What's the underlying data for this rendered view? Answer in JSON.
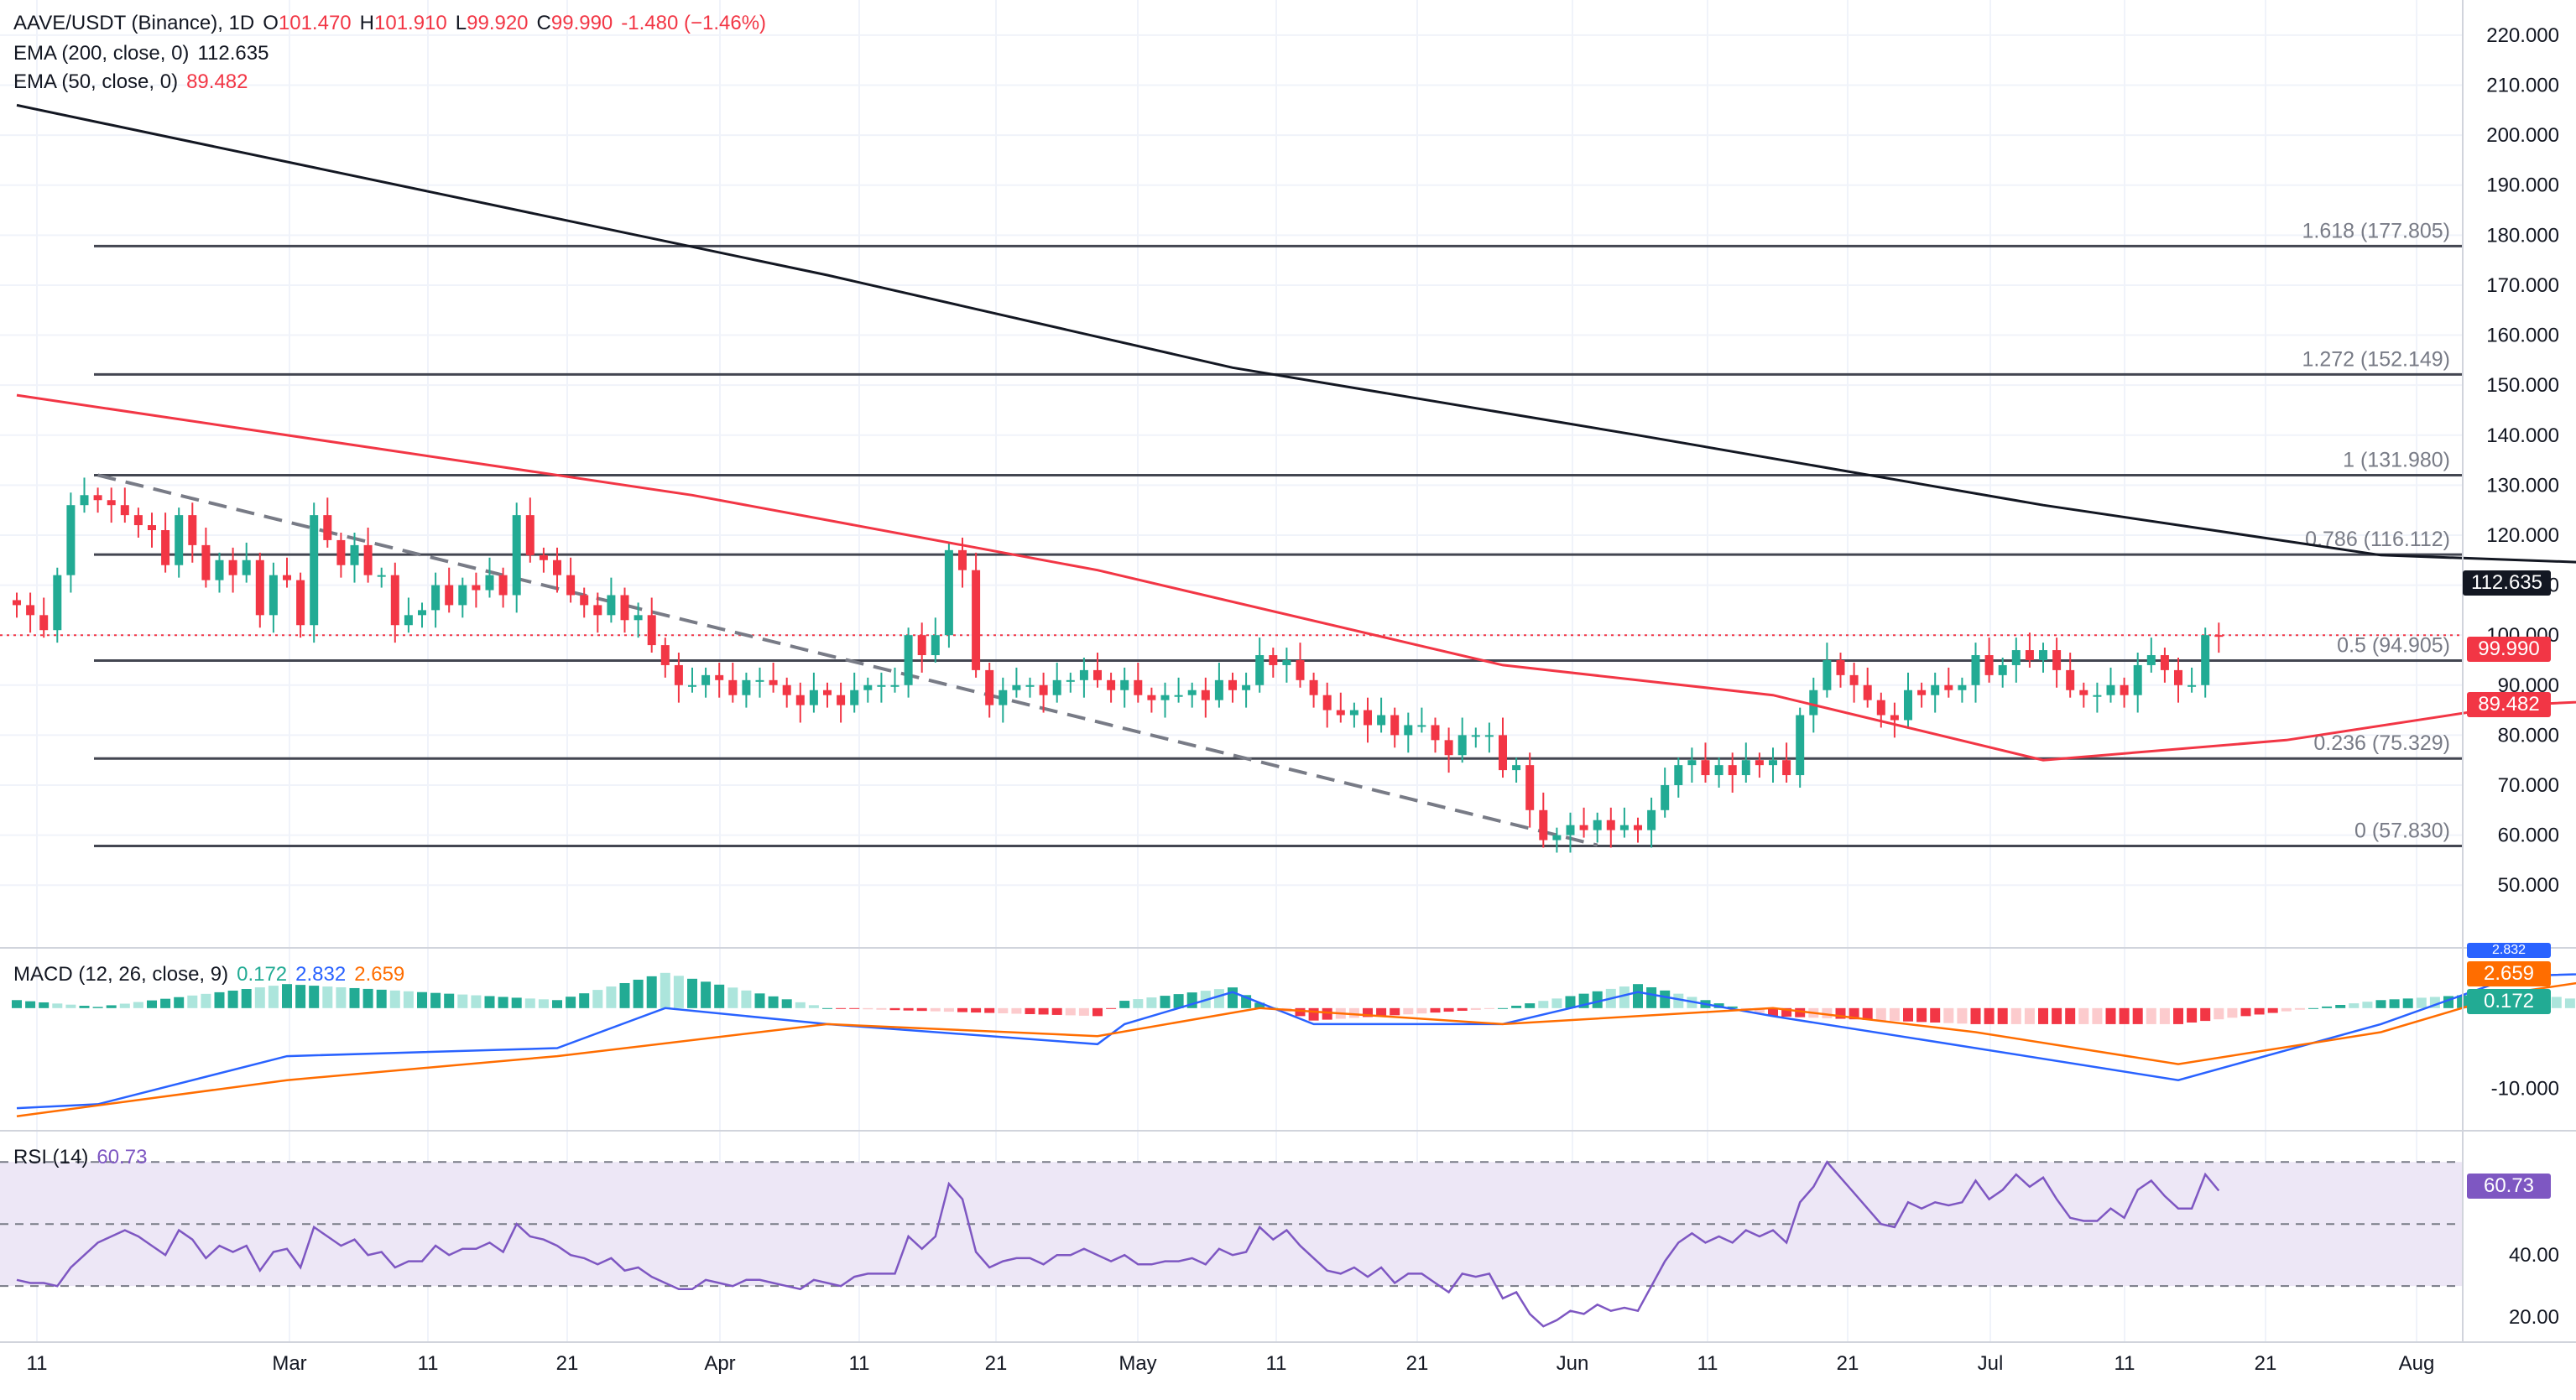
{
  "header": {
    "symbol": "AAVE/USDT (Binance), 1D",
    "o_label": "O",
    "o": "101.470",
    "h_label": "H",
    "h": "101.910",
    "l_label": "L",
    "l": "99.920",
    "c_label": "C",
    "c": "99.990",
    "change": "-1.480 (−1.46%)",
    "ema200_label": "EMA (200, close, 0)",
    "ema200_value": "112.635",
    "ema50_label": "EMA (50, close, 0)",
    "ema50_value": "89.482"
  },
  "macd_legend": {
    "label": "MACD (12, 26, close, 9)",
    "hist": "0.172",
    "macd": "2.832",
    "signal": "2.659"
  },
  "rsi_legend": {
    "label": "RSI (14)",
    "value": "60.73"
  },
  "badges": {
    "ema200": "112.635",
    "last_price": "99.990",
    "ema50": "89.482",
    "macd": "2.832",
    "signal": "2.659",
    "hist": "0.172",
    "rsi": "60.73"
  },
  "colors": {
    "up": "#22ab94",
    "down": "#f23645",
    "ema200": "#131722",
    "ema50": "#f23645",
    "macd": "#2962ff",
    "signal": "#ff6d00",
    "rsi": "#7e57c2",
    "rsi_band": "#ede7f6",
    "fib": "#434651",
    "grid": "#f0f3fa",
    "text": "#131722"
  },
  "chart_data": [
    {
      "type": "candlestick",
      "title": "AAVE/USDT (Binance), 1D",
      "x_ticks": [
        "11",
        "Mar",
        "11",
        "21",
        "Apr",
        "11",
        "21",
        "May",
        "11",
        "21",
        "Jun",
        "11",
        "21",
        "Jul",
        "11",
        "21",
        "Aug"
      ],
      "y_ticks": [
        "220.000",
        "210.000",
        "200.000",
        "190.000",
        "180.000",
        "170.000",
        "160.000",
        "150.000",
        "140.000",
        "130.000",
        "120.000",
        "110.000",
        "100.000",
        "90.000",
        "80.000",
        "70.000",
        "60.000",
        "50.000"
      ],
      "ylim": [
        45,
        222
      ],
      "fib_levels": [
        {
          "label": "1.618 (177.805)",
          "value": 177.805
        },
        {
          "label": "1.272 (152.149)",
          "value": 152.149
        },
        {
          "label": "1 (131.980)",
          "value": 131.98
        },
        {
          "label": "0.786 (116.112)",
          "value": 116.112
        },
        {
          "label": "0.5 (94.905)",
          "value": 94.905
        },
        {
          "label": "0.236 (75.329)",
          "value": 75.329
        },
        {
          "label": "0 (57.830)",
          "value": 57.83
        }
      ],
      "trendline": {
        "from": [
          6,
          132
        ],
        "to": [
          117,
          58
        ]
      },
      "closes": [
        106,
        104,
        101,
        112,
        126,
        128,
        127,
        126,
        124,
        122,
        121,
        114,
        124,
        118,
        111,
        115,
        112,
        115,
        104,
        112,
        111,
        102,
        124,
        119,
        114,
        118,
        112,
        112,
        102,
        104,
        105,
        110,
        106,
        110,
        109,
        112,
        108,
        124,
        116,
        115,
        112,
        108,
        106,
        104,
        108,
        103,
        104,
        98,
        94,
        90,
        90,
        92,
        91,
        88,
        91,
        91,
        90,
        88,
        86,
        89,
        88,
        86,
        89,
        90,
        90,
        90,
        100,
        96,
        100,
        117,
        113,
        93,
        86,
        89,
        90,
        90,
        88,
        91,
        91,
        93,
        91,
        89,
        91,
        88,
        87,
        88,
        88,
        89,
        87,
        91,
        89,
        90,
        96,
        94,
        95,
        91,
        88,
        85,
        84,
        85,
        82,
        84,
        80,
        82,
        82,
        79,
        76,
        80,
        80,
        80,
        73,
        74,
        65,
        59,
        60,
        62,
        61,
        63,
        61,
        62,
        61,
        65,
        70,
        74,
        75,
        72,
        74,
        72,
        75,
        74,
        75,
        72,
        84,
        89,
        95,
        92,
        90,
        87,
        84,
        83,
        89,
        88,
        90,
        89,
        90,
        96,
        92,
        94,
        97,
        95,
        97,
        93,
        89,
        88,
        88,
        90,
        88,
        94,
        96,
        93,
        90,
        90,
        100,
        99.99
      ],
      "ema200": [
        {
          "x": 0,
          "y": 206
        },
        {
          "x": 60,
          "y": 172
        },
        {
          "x": 90,
          "y": 153.5
        },
        {
          "x": 120,
          "y": 140
        },
        {
          "x": 150,
          "y": 126
        },
        {
          "x": 175,
          "y": 116
        },
        {
          "x": 210,
          "y": 112.635
        }
      ],
      "ema50": [
        {
          "x": 0,
          "y": 148
        },
        {
          "x": 50,
          "y": 128
        },
        {
          "x": 80,
          "y": 113
        },
        {
          "x": 110,
          "y": 94
        },
        {
          "x": 130,
          "y": 88
        },
        {
          "x": 150,
          "y": 75
        },
        {
          "x": 168,
          "y": 79
        },
        {
          "x": 185,
          "y": 86
        },
        {
          "x": 200,
          "y": 88
        },
        {
          "x": 210,
          "y": 89.482
        }
      ]
    },
    {
      "type": "bar+line",
      "title": "MACD (12, 26, close, 9)",
      "y_ticks": [
        "-10.000"
      ],
      "ylim": [
        -15,
        7
      ],
      "macd": [
        {
          "x": 0,
          "y": -12.5
        },
        {
          "x": 6,
          "y": -12
        },
        {
          "x": 20,
          "y": -6
        },
        {
          "x": 40,
          "y": -5
        },
        {
          "x": 48,
          "y": 0
        },
        {
          "x": 60,
          "y": -2
        },
        {
          "x": 80,
          "y": -4.5
        },
        {
          "x": 82,
          "y": -2
        },
        {
          "x": 90,
          "y": 2
        },
        {
          "x": 96,
          "y": -2
        },
        {
          "x": 110,
          "y": -2
        },
        {
          "x": 120,
          "y": 2
        },
        {
          "x": 130,
          "y": -1
        },
        {
          "x": 145,
          "y": -5
        },
        {
          "x": 160,
          "y": -9
        },
        {
          "x": 175,
          "y": -2
        },
        {
          "x": 185,
          "y": 4
        },
        {
          "x": 195,
          "y": 4.5
        },
        {
          "x": 205,
          "y": 1
        },
        {
          "x": 210,
          "y": 2.832
        }
      ],
      "signal": [
        {
          "x": 0,
          "y": -13.5
        },
        {
          "x": 20,
          "y": -9
        },
        {
          "x": 40,
          "y": -6
        },
        {
          "x": 60,
          "y": -2
        },
        {
          "x": 80,
          "y": -3.5
        },
        {
          "x": 92,
          "y": 0
        },
        {
          "x": 110,
          "y": -2
        },
        {
          "x": 130,
          "y": 0
        },
        {
          "x": 145,
          "y": -3
        },
        {
          "x": 160,
          "y": -7
        },
        {
          "x": 175,
          "y": -3
        },
        {
          "x": 185,
          "y": 2
        },
        {
          "x": 195,
          "y": 4.5
        },
        {
          "x": 205,
          "y": 2
        },
        {
          "x": 210,
          "y": 2.659
        }
      ]
    },
    {
      "type": "line",
      "title": "RSI (14)",
      "y_ticks": [
        "40.00",
        "20.00"
      ],
      "ylim": [
        13,
        79
      ],
      "bands": [
        70,
        50,
        30
      ],
      "values": [
        32,
        31,
        31,
        30,
        36,
        40,
        44,
        46,
        48,
        46,
        43,
        40,
        48,
        45,
        39,
        43,
        41,
        43,
        35,
        41,
        42,
        36,
        49,
        46,
        43,
        45,
        40,
        41,
        36,
        38,
        38,
        43,
        40,
        42,
        42,
        44,
        41,
        50,
        46,
        45,
        43,
        40,
        39,
        37,
        39,
        35,
        36,
        33,
        31,
        29,
        29,
        32,
        31,
        30,
        32,
        32,
        31,
        30,
        29,
        32,
        31,
        30,
        33,
        34,
        34,
        34,
        46,
        42,
        46,
        63,
        58,
        41,
        36,
        38,
        39,
        39,
        37,
        40,
        40,
        42,
        40,
        38,
        40,
        37,
        37,
        38,
        38,
        39,
        37,
        42,
        40,
        41,
        49,
        45,
        48,
        43,
        39,
        35,
        34,
        36,
        33,
        36,
        31,
        34,
        34,
        31,
        28,
        34,
        33,
        34,
        26,
        28,
        21,
        17,
        19,
        22,
        21,
        24,
        22,
        23,
        22,
        30,
        38,
        44,
        47,
        44,
        46,
        44,
        48,
        46,
        48,
        44,
        57,
        62,
        70,
        65,
        60,
        55,
        50,
        49,
        57,
        55,
        57,
        56,
        57,
        64,
        58,
        61,
        66,
        62,
        65,
        58,
        52,
        51,
        51,
        55,
        52,
        61,
        64,
        59,
        55,
        55,
        66,
        60.73
      ]
    }
  ]
}
